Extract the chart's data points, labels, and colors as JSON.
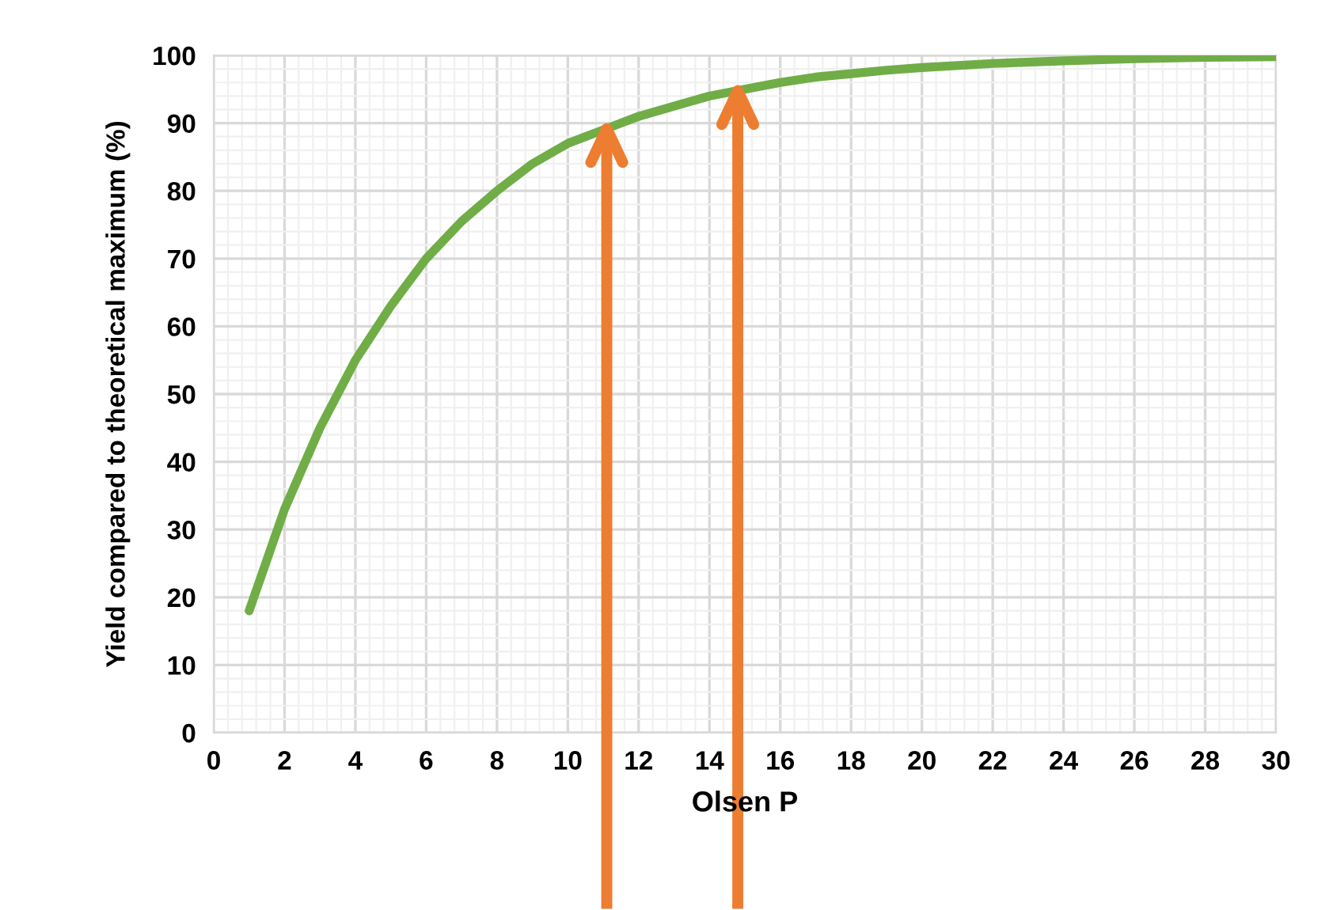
{
  "chart_data": {
    "type": "line",
    "xlabel": "Olsen P",
    "ylabel": "Yield compared to theoretical maximum (%)",
    "x": [
      1,
      2,
      3,
      4,
      5,
      6,
      7,
      8,
      9,
      10,
      11,
      12,
      13,
      14,
      15,
      16,
      17,
      18,
      19,
      20,
      22,
      24,
      26,
      28,
      30
    ],
    "series": [
      {
        "color": "#70ad47",
        "values": [
          18,
          33,
          45,
          55,
          63,
          70,
          75.5,
          80,
          84,
          87,
          89,
          91,
          92.5,
          94,
          95,
          96,
          96.8,
          97.3,
          97.8,
          98.2,
          98.8,
          99.2,
          99.5,
          99.7,
          99.8
        ]
      }
    ],
    "xlim": [
      0,
      30
    ],
    "xticks": [
      0,
      2,
      4,
      6,
      8,
      10,
      12,
      14,
      16,
      18,
      20,
      22,
      24,
      26,
      28,
      30
    ],
    "ylim": [
      0,
      100
    ],
    "yticks": [
      0,
      10,
      20,
      30,
      40,
      50,
      60,
      70,
      80,
      90,
      100
    ],
    "grid": true,
    "marker": "none",
    "line_style": "solid",
    "ref_lines": [
      {
        "axis": "x",
        "value": 11.1,
        "color": "#ed7d31"
      },
      {
        "axis": "x",
        "value": 14.8,
        "color": "#ed7d31"
      }
    ]
  }
}
